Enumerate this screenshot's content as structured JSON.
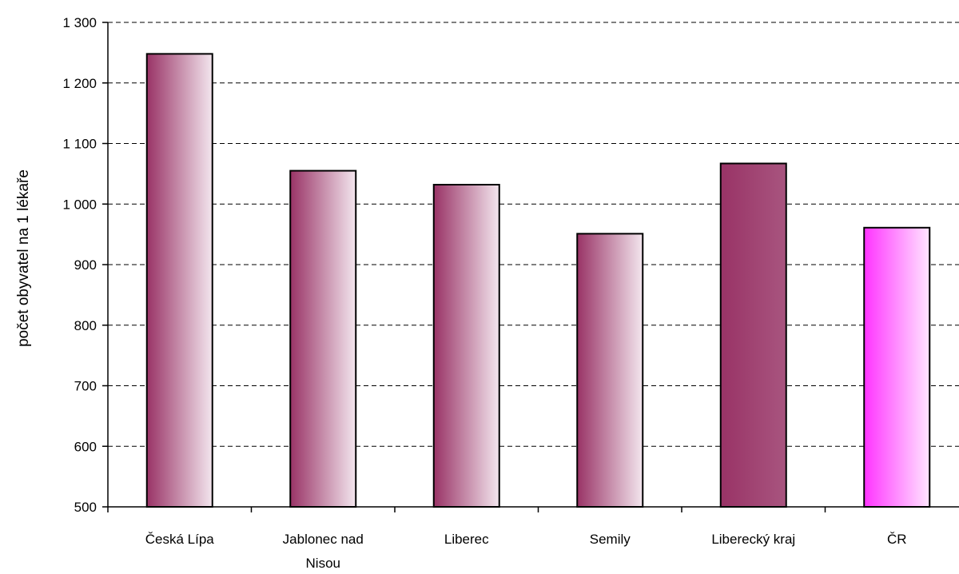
{
  "chart_data": {
    "type": "bar",
    "title": "",
    "xlabel": "",
    "ylabel": "počet obyvatel na 1 lékaře",
    "ylim": [
      500,
      1300
    ],
    "yticks": [
      500,
      600,
      700,
      800,
      900,
      1000,
      1100,
      1200,
      1300
    ],
    "ytick_labels": [
      "500",
      "600",
      "700",
      "800",
      "900",
      "1 000",
      "1 100",
      "1 200",
      "1 300"
    ],
    "grid": "horizontal dashed",
    "legend": "none",
    "categories": [
      [
        "Česká Lípa"
      ],
      [
        "Jablonec nad",
        "Nisou"
      ],
      [
        "Liberec"
      ],
      [
        "Semily"
      ],
      [
        "Liberecký kraj"
      ],
      [
        "ČR"
      ]
    ],
    "values": [
      1248,
      1055,
      1032,
      951,
      1067,
      961
    ],
    "bar_styles": [
      "gradient",
      "gradient",
      "gradient",
      "gradient",
      "solid",
      "pink-gradient"
    ],
    "colors": {
      "bar_dark": "#993366",
      "bar_light": "#F3E6EE",
      "solid_left": "#993366",
      "solid_right": "#A8557F",
      "pink_dark": "#FF33FF",
      "pink_light": "#FFE6FF",
      "grid": "#000000"
    }
  }
}
